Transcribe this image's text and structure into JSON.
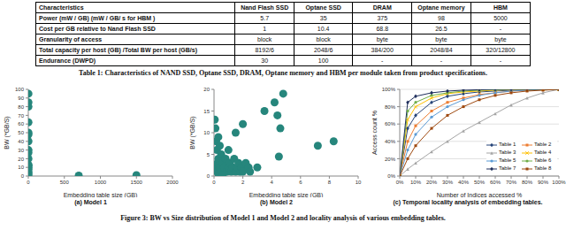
{
  "table": {
    "header": [
      "Characteristics",
      "Nand Flash SSD",
      "Optane SSD",
      "DRAM",
      "Optane memory",
      "HBM"
    ],
    "rows": [
      [
        "Power (mW / GB) (mW / GB/ s for HBM )",
        "5.7",
        "35",
        "375",
        "98",
        "5000"
      ],
      [
        "Cost per GB relative to Nand Flash SSD",
        "1",
        "10.4",
        "68.8",
        "26.5",
        "-"
      ],
      [
        "Granularity of access",
        "block",
        "block",
        "byte",
        "byte",
        "byte"
      ],
      [
        "Total capacity per host (GB) /Total BW per host (GB/s)",
        "8192/6",
        "2048/6",
        "384/200",
        "2048/84",
        "320/12800"
      ],
      [
        "Endurance (DWPD)",
        "30",
        "100",
        "-",
        "-",
        "-"
      ]
    ]
  },
  "table_caption": "Table 1: Characteristics of NAND SSD, Optane SSD, DRAM, Optane memory and HBM per module taken from product specifications.",
  "chart_data": [
    {
      "type": "scatter",
      "title": "(a) Model 1",
      "x_label": "Embedding table size (GB)",
      "y_label": "BW (*GB/S)",
      "x": [
        2,
        2,
        2,
        2,
        2,
        2,
        2,
        2,
        2,
        2,
        2,
        2,
        2,
        2,
        2,
        2,
        2,
        700,
        1500
      ],
      "values": [
        95,
        85,
        80,
        62,
        50,
        48,
        40,
        30,
        27,
        20,
        13,
        12,
        10,
        8,
        5,
        3,
        1,
        0.5,
        1
      ],
      "color": "#26867c",
      "xlim": [
        0,
        2000
      ],
      "xticks": [
        0,
        500,
        1000,
        1500,
        2000
      ],
      "ylim": [
        0,
        100
      ],
      "yticks": [
        0,
        10,
        20,
        30,
        40,
        50,
        60,
        70,
        80,
        90,
        100
      ],
      "grid": false
    },
    {
      "type": "scatter",
      "title": "(b) Model 2",
      "x_label": "Embedding table size (GB)",
      "y_label": "BW (*GB/S)",
      "x": [
        0.05,
        0.1,
        0.1,
        0.15,
        0.2,
        0.2,
        0.25,
        0.3,
        0.3,
        0.4,
        0.4,
        0.5,
        0.5,
        0.6,
        0.7,
        0.8,
        0.9,
        1.0,
        1.0,
        1.1,
        1.2,
        1.3,
        1.4,
        1.5,
        1.5,
        1.6,
        1.7,
        1.8,
        1.9,
        2.0,
        2.0,
        2.2,
        2.4,
        2.5,
        3.0,
        3.5,
        4.2,
        4.4,
        4.5,
        4.6,
        4.8,
        7.2,
        8.3,
        0.3,
        0.6
      ],
      "values": [
        13,
        11,
        2,
        8,
        6,
        1,
        3,
        4,
        0.5,
        2,
        7,
        5,
        1,
        3,
        2,
        4,
        1,
        2,
        6,
        3,
        1,
        2,
        4,
        10,
        1,
        2,
        3,
        1,
        2,
        1,
        12,
        3,
        2,
        1,
        2,
        15,
        17,
        14,
        4.5,
        11,
        19,
        7,
        8,
        9,
        0.3
      ],
      "color": "#26867c",
      "xlim": [
        0,
        10
      ],
      "xticks": [
        0,
        2,
        4,
        6,
        8,
        10
      ],
      "ylim": [
        0,
        20
      ],
      "yticks": [
        0,
        5,
        10,
        15,
        20
      ],
      "grid": false
    },
    {
      "type": "line",
      "title": "(c) Temporal locality analysis of embedding tables.",
      "x_label": "Number of Indices accessed %",
      "y_label": "Access count %",
      "x": [
        0,
        5,
        10,
        20,
        30,
        40,
        50,
        60,
        70,
        80,
        90,
        100
      ],
      "series": [
        {
          "name": "Table 1",
          "color": "#264478",
          "marker": "diamond",
          "values": [
            0,
            55,
            70,
            85,
            92,
            95,
            97,
            98,
            99,
            99.5,
            100,
            100
          ]
        },
        {
          "name": "Table 2",
          "color": "#ed7d31",
          "marker": "square",
          "values": [
            0,
            40,
            58,
            75,
            85,
            90,
            94,
            96,
            98,
            99,
            100,
            100
          ]
        },
        {
          "name": "Table 3",
          "color": "#a5a5a5",
          "marker": "triangle",
          "values": [
            0,
            8,
            15,
            28,
            40,
            52,
            62,
            72,
            82,
            90,
            96,
            100
          ]
        },
        {
          "name": "Table 4",
          "color": "#ffc000",
          "marker": "cross",
          "values": [
            0,
            65,
            80,
            90,
            95,
            97,
            98,
            99,
            99.5,
            100,
            100,
            100
          ]
        },
        {
          "name": "Table 5",
          "color": "#5b9bd5",
          "marker": "circle",
          "values": [
            0,
            30,
            48,
            68,
            80,
            88,
            93,
            96,
            98,
            99,
            100,
            100
          ]
        },
        {
          "name": "Table 6",
          "color": "#70ad47",
          "marker": "circle",
          "values": [
            0,
            75,
            85,
            93,
            96,
            98,
            99,
            99.5,
            100,
            100,
            100,
            100
          ]
        },
        {
          "name": "Table 7",
          "color": "#1f2f5c",
          "marker": "diamond",
          "values": [
            0,
            85,
            92,
            96,
            98,
            99,
            99.5,
            100,
            100,
            100,
            100,
            100
          ]
        },
        {
          "name": "Table 8",
          "color": "#9e480e",
          "marker": "square",
          "values": [
            0,
            20,
            35,
            55,
            70,
            80,
            88,
            93,
            96,
            98,
            99,
            100
          ]
        }
      ],
      "xlim": [
        0,
        100
      ],
      "xticks": [
        {
          "value": 0,
          "label": "0%"
        },
        {
          "value": 10,
          "label": "10%"
        },
        {
          "value": 20,
          "label": "20%"
        },
        {
          "value": 30,
          "label": "30%"
        },
        {
          "value": 40,
          "label": "40%"
        },
        {
          "value": 50,
          "label": "50%"
        },
        {
          "value": 60,
          "label": "60%"
        },
        {
          "value": 70,
          "label": "70%"
        },
        {
          "value": 80,
          "label": "80%"
        },
        {
          "value": 90,
          "label": "90%"
        },
        {
          "value": 100,
          "label": "100%"
        }
      ],
      "ylim": [
        0,
        100
      ],
      "yticks": [
        {
          "value": 0,
          "label": "0%"
        },
        {
          "value": 20,
          "label": "20%"
        },
        {
          "value": 40,
          "label": "40%"
        },
        {
          "value": 60,
          "label": "60%"
        },
        {
          "value": 80,
          "label": "80%"
        },
        {
          "value": 100,
          "label": "100%"
        }
      ],
      "grid": true,
      "legend": "lower right"
    }
  ],
  "figure_caption": "Figure 3: BW vs Size distribution of Model 1 and Model 2 and locality analysis of various embedding tables."
}
